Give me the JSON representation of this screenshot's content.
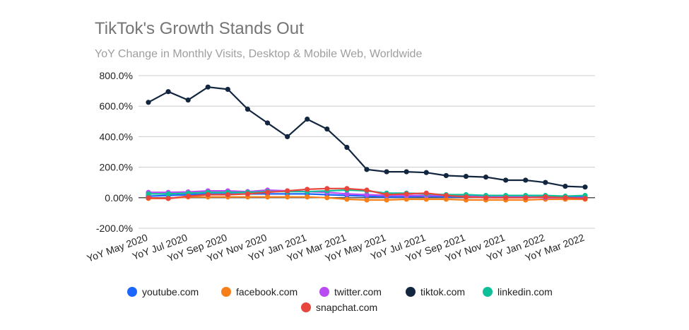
{
  "chart_data": {
    "type": "line",
    "title": "TikTok's Growth Stands Out",
    "subtitle": "YoY Change in Monthly Visits, Desktop & Mobile Web, Worldwide",
    "xlabel": "",
    "ylabel": "",
    "ylim": [
      -200,
      800
    ],
    "yticks": [
      -200,
      0,
      200,
      400,
      600,
      800
    ],
    "ytick_labels": [
      "-200.0%",
      "0.00%",
      "200.0%",
      "400.0%",
      "600.0%",
      "800.0%"
    ],
    "grid": true,
    "legend_position": "bottom",
    "x": [
      "YoY May 2020",
      "YoY Jun 2020",
      "YoY Jul 2020",
      "YoY Aug 2020",
      "YoY Sep 2020",
      "YoY Oct 2020",
      "YoY Nov 2020",
      "YoY Dec 2020",
      "YoY Jan 2021",
      "YoY Feb 2021",
      "YoY Mar 2021",
      "YoY Apr 2021",
      "YoY May 2021",
      "YoY Jun 2021",
      "YoY Jul 2021",
      "YoY Aug 2021",
      "YoY Sep 2021",
      "YoY Oct 2021",
      "YoY Nov 2021",
      "YoY Dec 2021",
      "YoY Jan 2022",
      "YoY Feb 2022",
      "YoY Mar 2022"
    ],
    "x_tick_labels": [
      "YoY May 2020",
      "YoY Jul 2020",
      "YoY Sep 2020",
      "YoY Nov 2020",
      "YoY Jan 2021",
      "YoY Mar 2021",
      "YoY May 2021",
      "YoY Jul 2021",
      "YoY Sep 2021",
      "YoY Nov 2021",
      "YoY Jan 2022",
      "YoY Mar 2022"
    ],
    "series": [
      {
        "name": "youtube.com",
        "color": "#1a66ff",
        "values": [
          10,
          15,
          20,
          25,
          25,
          25,
          25,
          25,
          25,
          20,
          15,
          10,
          5,
          5,
          10,
          5,
          5,
          5,
          5,
          5,
          5,
          5,
          5
        ]
      },
      {
        "name": "facebook.com",
        "color": "#f77f1a",
        "values": [
          -5,
          -5,
          5,
          5,
          5,
          5,
          5,
          5,
          5,
          0,
          -10,
          -15,
          -15,
          -10,
          -10,
          -10,
          -15,
          -15,
          -15,
          -15,
          -10,
          -10,
          -10
        ]
      },
      {
        "name": "twitter.com",
        "color": "#b84cf2",
        "values": [
          35,
          35,
          38,
          45,
          45,
          40,
          50,
          45,
          40,
          35,
          25,
          20,
          15,
          15,
          15,
          15,
          10,
          10,
          5,
          5,
          0,
          0,
          0
        ]
      },
      {
        "name": "tiktok.com",
        "color": "#12263f",
        "values": [
          625,
          695,
          640,
          725,
          710,
          580,
          490,
          400,
          515,
          450,
          330,
          185,
          170,
          170,
          165,
          145,
          140,
          135,
          115,
          115,
          100,
          75,
          70
        ]
      },
      {
        "name": "linkedin.com",
        "color": "#0fbf99",
        "values": [
          25,
          25,
          30,
          35,
          35,
          35,
          40,
          40,
          40,
          45,
          50,
          45,
          30,
          30,
          25,
          20,
          20,
          15,
          15,
          15,
          15,
          10,
          15
        ]
      },
      {
        "name": "snapchat.com",
        "color": "#e8453c",
        "values": [
          0,
          -5,
          10,
          20,
          20,
          25,
          35,
          45,
          55,
          60,
          60,
          50,
          20,
          25,
          30,
          15,
          5,
          0,
          0,
          0,
          5,
          0,
          -5
        ]
      }
    ]
  }
}
